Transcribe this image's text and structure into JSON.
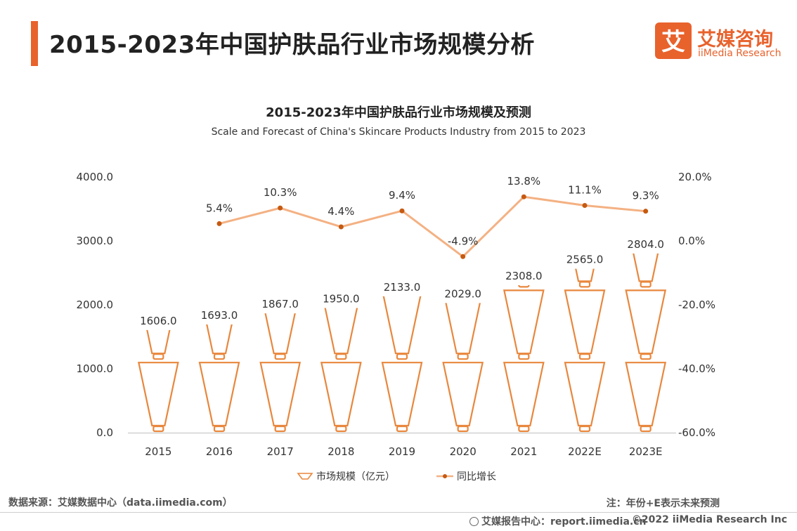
{
  "header": {
    "title": "2015-2023年中国护肤品行业市场规模分析",
    "logo_cn": "艾媒咨询",
    "logo_en": "iiMedia Research",
    "logo_mark": "艾"
  },
  "colors": {
    "accent": "#e8622c",
    "bar": "#e8873d",
    "line": "#f4b183",
    "dot": "#c55a11"
  },
  "chart_data": {
    "type": "bar+line",
    "title": "2015-2023年中国护肤品行业市场规模及预测",
    "subtitle": "Scale and Forecast of China's Skincare Products Industry from 2015 to 2023",
    "categories": [
      "2015",
      "2016",
      "2017",
      "2018",
      "2019",
      "2020",
      "2021",
      "2022E",
      "2023E"
    ],
    "series": [
      {
        "name": "市场规模（亿元）",
        "type": "pictorial-bar",
        "axis": "left",
        "values": [
          1606.0,
          1693.0,
          1867.0,
          1950.0,
          2133.0,
          2029.0,
          2308.0,
          2565.0,
          2804.0
        ],
        "labels": [
          "1606.0",
          "1693.0",
          "1867.0",
          "1950.0",
          "2133.0",
          "2029.0",
          "2308.0",
          "2565.0",
          "2804.0"
        ]
      },
      {
        "name": "同比增长",
        "type": "line",
        "axis": "right",
        "values": [
          null,
          5.4,
          10.3,
          4.4,
          9.4,
          -4.9,
          13.8,
          11.1,
          9.3
        ],
        "labels": [
          "",
          "5.4%",
          "10.3%",
          "4.4%",
          "9.4%",
          "-4.9%",
          "13.8%",
          "11.1%",
          "9.3%"
        ]
      }
    ],
    "y_left": {
      "min": 0,
      "max": 4000,
      "ticks": [
        "0.0",
        "1000.0",
        "2000.0",
        "3000.0",
        "4000.0"
      ]
    },
    "y_right": {
      "min": -60,
      "max": 20,
      "ticks": [
        "-60.0%",
        "-40.0%",
        "-20.0%",
        "0.0%",
        "20.0%"
      ]
    },
    "grid": false,
    "legend_position": "bottom"
  },
  "footer": {
    "source": "数据来源：艾媒数据中心（data.iimedia.com）",
    "note": "注：年份+E表示未来预测",
    "site": "艾媒报告中心：report.iimedia.cn",
    "copyright": "©2022  iiMedia Research  Inc"
  }
}
